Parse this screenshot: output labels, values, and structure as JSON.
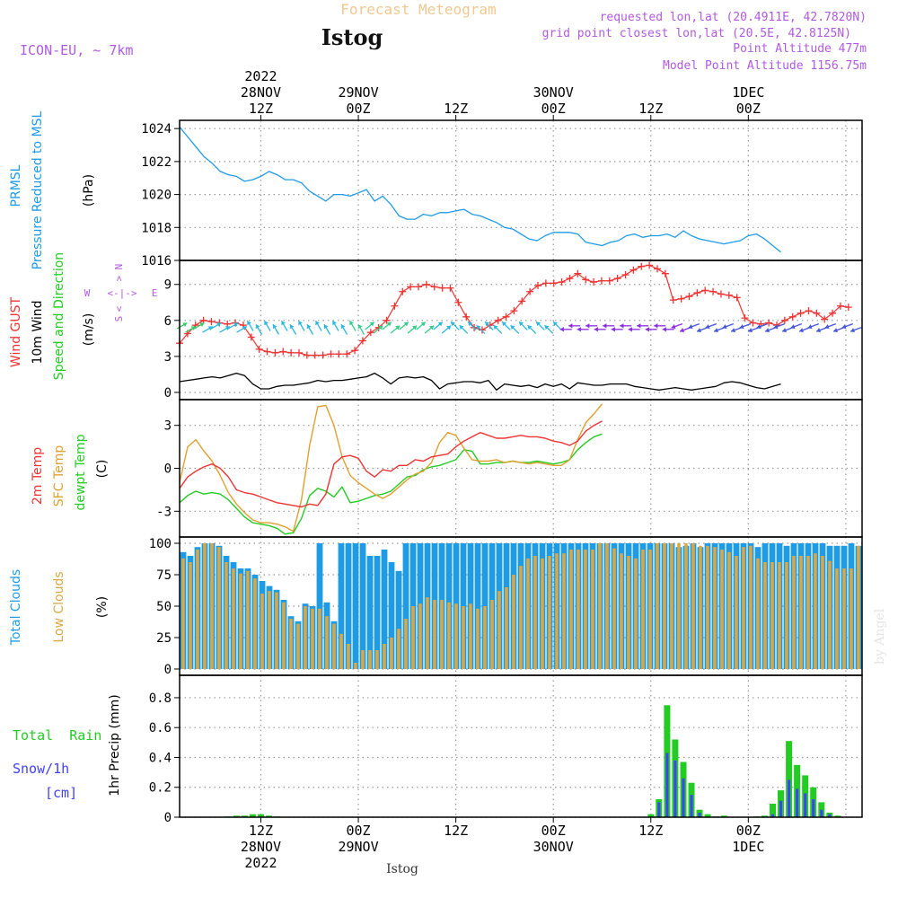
{
  "header": {
    "meteogram_title": "Forecast Meteogram",
    "station": "Istog",
    "model": "ICON-EU, ~ 7km",
    "requested": "requested lon,lat (20.4911E, 42.7820N)",
    "grid_point": "grid point closest lon,lat (20.5E, 42.8125N)",
    "point_altitude": "Point Altitude 477m",
    "model_altitude": "Model Point Altitude 1156.75m",
    "footer_station": "Istog",
    "credit": "by Angel"
  },
  "colors": {
    "pressure": "#1e9be6",
    "gust": "#ee3333",
    "wind": "#000000",
    "t2m": "#ee3333",
    "sfc": "#e0a030",
    "dewpt": "#22cc22",
    "total_clouds": "#1e9be6",
    "low_clouds": "#d8a84a",
    "rain": "#22cc22",
    "snow": "#4040ff",
    "purple": "#b05adf"
  },
  "time_axis": {
    "top_labels": [
      {
        "t": 12,
        "lines": [
          "2022",
          "28NOV",
          "12Z"
        ]
      },
      {
        "t": 24,
        "lines": [
          "29NOV",
          "00Z"
        ]
      },
      {
        "t": 36,
        "lines": [
          "12Z"
        ]
      },
      {
        "t": 48,
        "lines": [
          "30NOV",
          "00Z"
        ]
      },
      {
        "t": 60,
        "lines": [
          "12Z"
        ]
      },
      {
        "t": 72,
        "lines": [
          "1DEC",
          "00Z"
        ]
      }
    ],
    "bottom_labels": [
      {
        "t": 12,
        "lines": [
          "12Z",
          "28NOV",
          "2022"
        ]
      },
      {
        "t": 24,
        "lines": [
          "00Z",
          "29NOV"
        ]
      },
      {
        "t": 36,
        "lines": [
          "12Z"
        ]
      },
      {
        "t": 48,
        "lines": [
          "00Z",
          "30NOV"
        ]
      },
      {
        "t": 60,
        "lines": [
          "12Z"
        ]
      },
      {
        "t": 72,
        "lines": [
          "00Z",
          "1DEC"
        ]
      }
    ]
  },
  "chart_data": [
    {
      "type": "line",
      "id": "pressure",
      "ylabel_lines": [
        "PRMSL",
        "Pressure Reduced to MSL",
        "(hPa)"
      ],
      "ylim": [
        1016,
        1024.5
      ],
      "yticks": [
        1016,
        1018,
        1020,
        1022,
        1024
      ],
      "series": [
        {
          "name": "PRMSL",
          "values": [
            1024.1,
            1023.5,
            1022.9,
            1022.3,
            1021.9,
            1021.4,
            1021.2,
            1021.1,
            1020.8,
            1020.9,
            1021.1,
            1021.4,
            1021.2,
            1020.9,
            1020.9,
            1020.7,
            1020.2,
            1019.9,
            1019.6,
            1020.0,
            1020.0,
            1019.9,
            1020.1,
            1020.3,
            1019.6,
            1019.9,
            1019.4,
            1018.7,
            1018.5,
            1018.5,
            1018.8,
            1018.7,
            1018.9,
            1018.9,
            1019.0,
            1019.1,
            1018.8,
            1018.7,
            1018.5,
            1018.3,
            1018.0,
            1017.9,
            1017.6,
            1017.3,
            1017.2,
            1017.5,
            1017.7,
            1017.7,
            1017.7,
            1017.6,
            1017.1,
            1017.0,
            1016.9,
            1017.1,
            1017.2,
            1017.5,
            1017.6,
            1017.4,
            1017.5,
            1017.5,
            1017.6,
            1017.4,
            1017.8,
            1017.5,
            1017.3,
            1017.2,
            1017.1,
            1017.0,
            1017.1,
            1017.2,
            1017.5,
            1017.6,
            1017.3,
            1016.9,
            1016.5
          ]
        }
      ]
    },
    {
      "type": "line",
      "id": "wind",
      "ylabel_lines": [
        "Wind GUST",
        "10m Wind",
        "Speed and Direction",
        "(m/s)"
      ],
      "compass": {
        "n": "N",
        "s": "S",
        "w": "W",
        "e": "E",
        "arrow": "<-|->"
      },
      "ylim": [
        -0.6,
        11
      ],
      "yticks": [
        0,
        3,
        6,
        9
      ],
      "series": [
        {
          "name": "Wind GUST",
          "values": [
            4.1,
            4.9,
            5.6,
            6.0,
            5.9,
            5.8,
            5.7,
            5.8,
            5.6,
            4.6,
            3.6,
            3.4,
            3.3,
            3.4,
            3.3,
            3.3,
            3.1,
            3.1,
            3.1,
            3.2,
            3.2,
            3.2,
            3.5,
            4.3,
            5.0,
            5.4,
            6.0,
            7.2,
            8.4,
            8.8,
            8.8,
            9.0,
            8.8,
            8.7,
            8.7,
            7.5,
            6.3,
            5.4,
            5.2,
            5.6,
            6.0,
            6.3,
            6.8,
            7.6,
            8.4,
            8.9,
            9.1,
            9.1,
            9.2,
            9.5,
            9.9,
            9.4,
            9.2,
            9.3,
            9.3,
            9.5,
            9.8,
            10.2,
            10.5,
            10.6,
            10.3,
            9.9,
            7.7,
            7.8,
            8.0,
            8.3,
            8.5,
            8.4,
            8.2,
            8.1,
            7.9,
            6.2,
            5.8,
            5.7,
            5.8,
            5.6,
            6.0,
            6.3,
            6.6,
            6.8,
            6.6,
            6.1,
            6.6,
            7.2,
            7.1
          ]
        },
        {
          "name": "10m Wind",
          "values": [
            0.9,
            1.0,
            1.1,
            1.2,
            1.3,
            1.2,
            1.4,
            1.6,
            1.4,
            0.7,
            0.3,
            0.3,
            0.5,
            0.6,
            0.6,
            0.7,
            0.8,
            1.0,
            0.9,
            1.0,
            1.0,
            1.1,
            1.2,
            1.3,
            1.6,
            1.2,
            0.7,
            1.2,
            1.3,
            1.2,
            1.3,
            1.0,
            0.3,
            0.7,
            0.8,
            0.9,
            0.9,
            0.8,
            1.0,
            0.2,
            0.7,
            0.6,
            0.5,
            0.6,
            0.4,
            0.7,
            0.5,
            0.7,
            0.3,
            0.8,
            0.7,
            0.6,
            0.6,
            0.7,
            0.7,
            0.7,
            0.5,
            0.4,
            0.3,
            0.2,
            0.3,
            0.4,
            0.3,
            0.2,
            0.3,
            0.4,
            0.5,
            0.8,
            0.9,
            0.8,
            0.6,
            0.4,
            0.3,
            0.5,
            0.7
          ]
        }
      ]
    },
    {
      "type": "line",
      "id": "temperature",
      "ylabel_lines": [
        "2m Temp",
        "SFC Temp",
        "dewpt Temp",
        "(C)"
      ],
      "ylim": [
        -4.8,
        4.8
      ],
      "yticks": [
        -3,
        0,
        3
      ],
      "series": [
        {
          "name": "2m Temp",
          "values": [
            -1.4,
            -0.6,
            -0.2,
            0.1,
            0.3,
            0.0,
            -0.6,
            -1.5,
            -1.7,
            -1.8,
            -2.0,
            -2.2,
            -2.4,
            -2.5,
            -2.6,
            -2.7,
            -2.5,
            -2.6,
            -1.8,
            0.3,
            0.8,
            0.9,
            0.7,
            -0.2,
            -0.6,
            -0.1,
            -0.2,
            0.2,
            0.2,
            0.6,
            0.5,
            0.8,
            0.9,
            1.0,
            1.5,
            1.9,
            2.2,
            2.5,
            2.3,
            2.1,
            2.1,
            2.2,
            2.3,
            2.2,
            2.2,
            2.1,
            1.9,
            1.8,
            1.6,
            1.9,
            2.6,
            3.0,
            3.3
          ]
        },
        {
          "name": "SFC Temp",
          "values": [
            -1.0,
            1.5,
            2.0,
            1.2,
            0.5,
            -0.5,
            -1.7,
            -2.5,
            -3.1,
            -3.6,
            -3.8,
            -3.8,
            -3.9,
            -4.1,
            -4.4,
            -2.2,
            1.6,
            4.3,
            4.4,
            3.0,
            0.8,
            -0.5,
            -1.0,
            -1.4,
            -1.8,
            -2.1,
            -1.8,
            -1.3,
            -0.8,
            -0.4,
            -0.2,
            0.4,
            1.8,
            2.5,
            2.3,
            1.4,
            0.6,
            0.5,
            0.5,
            0.6,
            0.4,
            0.5,
            0.4,
            0.3,
            0.4,
            0.3,
            0.2,
            0.2,
            0.6,
            2.0,
            3.2,
            3.8,
            4.5
          ]
        },
        {
          "name": "dewpt Temp",
          "values": [
            -2.4,
            -1.9,
            -1.6,
            -1.8,
            -1.7,
            -1.8,
            -2.2,
            -2.8,
            -3.4,
            -3.8,
            -3.9,
            -4.0,
            -4.2,
            -4.6,
            -4.5,
            -3.5,
            -1.9,
            -1.4,
            -1.6,
            -2.0,
            -1.3,
            -2.4,
            -2.3,
            -2.1,
            -1.9,
            -1.8,
            -1.6,
            -1.1,
            -0.6,
            -0.5,
            -0.1,
            0.1,
            0.2,
            0.4,
            0.6,
            1.3,
            1.2,
            0.3,
            0.3,
            0.4,
            0.4,
            0.5,
            0.4,
            0.4,
            0.5,
            0.4,
            0.3,
            0.4,
            0.6,
            1.3,
            1.8,
            2.2,
            2.4
          ]
        }
      ]
    },
    {
      "type": "bar",
      "id": "clouds",
      "ylabel_lines": [
        "Total Clouds",
        "Low Clouds",
        "(%)"
      ],
      "ylim": [
        -5,
        105
      ],
      "yticks": [
        0,
        25,
        50,
        75,
        100
      ],
      "series": [
        {
          "name": "Total Clouds",
          "values": [
            93,
            90,
            97,
            100,
            100,
            98,
            90,
            85,
            80,
            80,
            75,
            70,
            66,
            63,
            55,
            42,
            38,
            52,
            50,
            100,
            53,
            38,
            100,
            100,
            100,
            100,
            90,
            90,
            95,
            85,
            78,
            100,
            100,
            100,
            100,
            100,
            100,
            100,
            100,
            100,
            100,
            100,
            100,
            100,
            100,
            100,
            100,
            100,
            100,
            100,
            100,
            100,
            100,
            100,
            100,
            100,
            100,
            100,
            100,
            100,
            100,
            100,
            100,
            100,
            100,
            100,
            100,
            100,
            100,
            97,
            98,
            100,
            97,
            100,
            100,
            100,
            100,
            100,
            100,
            100,
            97,
            100,
            100,
            100,
            98,
            100,
            100,
            100,
            100,
            100,
            98,
            98,
            98,
            100,
            98
          ]
        },
        {
          "name": "Low Clouds",
          "values": [
            88,
            85,
            95,
            100,
            100,
            97,
            85,
            80,
            76,
            78,
            72,
            60,
            62,
            61,
            53,
            40,
            36,
            50,
            48,
            48,
            42,
            36,
            28,
            20,
            5,
            15,
            15,
            15,
            20,
            25,
            32,
            40,
            50,
            52,
            57,
            55,
            55,
            53,
            52,
            50,
            52,
            48,
            50,
            55,
            62,
            65,
            75,
            82,
            88,
            90,
            88,
            90,
            92,
            92,
            95,
            95,
            95,
            95,
            100,
            100,
            96,
            92,
            90,
            88,
            95,
            95,
            100,
            100,
            100,
            100,
            100,
            100,
            98,
            98,
            97,
            95,
            93,
            90,
            97,
            98,
            88,
            85,
            85,
            85,
            85,
            90,
            90,
            90,
            92,
            90,
            86,
            80,
            80,
            80,
            98
          ]
        }
      ]
    },
    {
      "type": "bar",
      "id": "precip",
      "ylabel_lines": [
        "1hr Precip (mm)"
      ],
      "legend_lines": [
        "Total  Rain",
        "Snow/1h",
        "[cm]"
      ],
      "ylim": [
        0,
        0.95
      ],
      "yticks": [
        0,
        0.2,
        0.4,
        0.6,
        0.8
      ],
      "series": [
        {
          "name": "Total Rain",
          "t": [
            8,
            9,
            10,
            11,
            12,
            13,
            14,
            59,
            60,
            61,
            62,
            63,
            64,
            65,
            66,
            67,
            68,
            69,
            70,
            71,
            72,
            73,
            74,
            75,
            76,
            77,
            78,
            79,
            80,
            81,
            82,
            83,
            84
          ],
          "values": [
            0.005,
            0.01,
            0.01,
            0.02,
            0.02,
            0.01,
            0.005,
            0.0,
            0.02,
            0.12,
            0.75,
            0.52,
            0.37,
            0.23,
            0.05,
            0.02,
            0.005,
            0.01,
            0.0,
            0.0,
            0.0,
            0.005,
            0.01,
            0.09,
            0.18,
            0.51,
            0.35,
            0.28,
            0.2,
            0.1,
            0.03,
            0.01,
            0.0
          ]
        },
        {
          "name": "Snow",
          "t": [
            61,
            62,
            63,
            64,
            65,
            66,
            75,
            76,
            77,
            78,
            79,
            80,
            81,
            82
          ],
          "values": [
            0.1,
            0.43,
            0.38,
            0.26,
            0.15,
            0.03,
            0.02,
            0.11,
            0.25,
            0.19,
            0.16,
            0.12,
            0.05,
            0.02
          ]
        }
      ]
    }
  ]
}
